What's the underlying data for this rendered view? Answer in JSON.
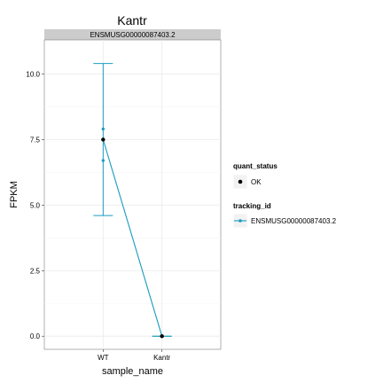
{
  "chart_data": {
    "type": "line",
    "title": "Kantr",
    "facet_label": "ENSMUSG00000087403.2",
    "xlabel": "sample_name",
    "ylabel": "FPKM",
    "categories": [
      "WT",
      "Kantr"
    ],
    "ylim": [
      -0.5,
      11.3
    ],
    "yticks": [
      0.0,
      2.5,
      5.0,
      7.5,
      10.0
    ],
    "ytick_labels": [
      "0.0",
      "2.5",
      "5.0",
      "7.5",
      "10.0"
    ],
    "grid": true,
    "series": [
      {
        "name": "ENSMUSG00000087403.2",
        "color": "#1a9bbf",
        "values": [
          7.5,
          0.0
        ],
        "error_low": [
          4.6,
          0.0
        ],
        "error_high": [
          10.4,
          0.0
        ],
        "replicates": [
          [
            7.9,
            6.7
          ],
          []
        ]
      }
    ],
    "legend": {
      "position": "right",
      "quant_status": {
        "title": "quant_status",
        "entries": [
          "OK"
        ]
      },
      "tracking_id": {
        "title": "tracking_id",
        "entries": [
          "ENSMUSG00000087403.2"
        ]
      }
    }
  }
}
